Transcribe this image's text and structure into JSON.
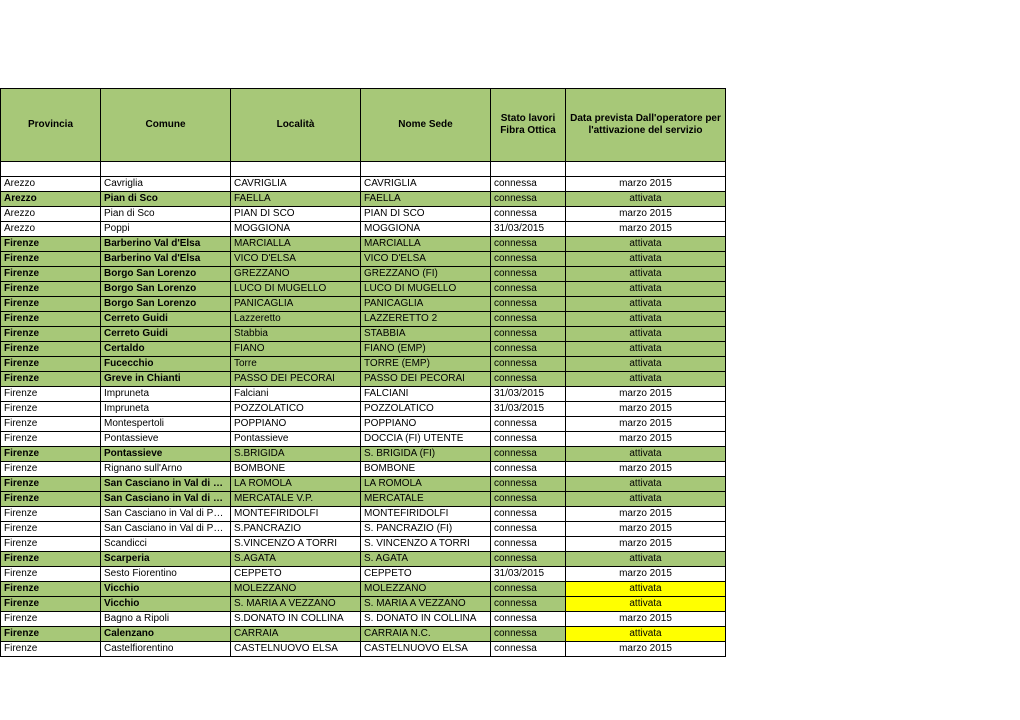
{
  "table": {
    "columns": [
      {
        "label": "Provincia",
        "class": "col0"
      },
      {
        "label": "Comune",
        "class": "col1"
      },
      {
        "label": "Località",
        "class": "col2"
      },
      {
        "label": "Nome Sede",
        "class": "col3"
      },
      {
        "label": "Stato lavori Fibra Ottica",
        "class": "col4"
      },
      {
        "label": "Data prevista Dall'operatore per l'attivazione del servizio",
        "class": "col5"
      }
    ],
    "rows": [
      {
        "style": "white",
        "cells": [
          "Arezzo",
          "Cavriglia",
          "CAVRIGLIA",
          "CAVRIGLIA",
          "connessa",
          "marzo 2015"
        ]
      },
      {
        "style": "green",
        "cells": [
          "Arezzo",
          "Pian di Sco",
          "FAELLA",
          "FAELLA",
          "connessa",
          "attivata"
        ]
      },
      {
        "style": "white",
        "cells": [
          "Arezzo",
          "Pian di Sco",
          "PIAN DI SCO",
          "PIAN DI SCO",
          "connessa",
          "marzo 2015"
        ]
      },
      {
        "style": "white",
        "cells": [
          "Arezzo",
          "Poppi",
          "MOGGIONA",
          "MOGGIONA",
          "31/03/2015",
          "marzo 2015"
        ]
      },
      {
        "style": "green",
        "cells": [
          "Firenze",
          "Barberino Val d'Elsa",
          "MARCIALLA",
          "MARCIALLA",
          "connessa",
          "attivata"
        ]
      },
      {
        "style": "green",
        "cells": [
          "Firenze",
          "Barberino Val d'Elsa",
          "VICO D'ELSA",
          "VICO D'ELSA",
          "connessa",
          "attivata"
        ]
      },
      {
        "style": "green",
        "cells": [
          "Firenze",
          "Borgo San Lorenzo",
          "GREZZANO",
          "GREZZANO (FI)",
          "connessa",
          "attivata"
        ]
      },
      {
        "style": "green",
        "cells": [
          "Firenze",
          "Borgo San Lorenzo",
          "LUCO DI MUGELLO",
          "LUCO DI MUGELLO",
          "connessa",
          "attivata"
        ]
      },
      {
        "style": "green",
        "cells": [
          "Firenze",
          "Borgo San Lorenzo",
          "PANICAGLIA",
          "PANICAGLIA",
          "connessa",
          "attivata"
        ]
      },
      {
        "style": "green",
        "cells": [
          "Firenze",
          "Cerreto Guidi",
          "Lazzeretto",
          "LAZZERETTO 2",
          "connessa",
          "attivata"
        ]
      },
      {
        "style": "green",
        "cells": [
          "Firenze",
          "Cerreto Guidi",
          "Stabbia",
          "STABBIA",
          "connessa",
          "attivata"
        ]
      },
      {
        "style": "green",
        "cells": [
          "Firenze",
          "Certaldo",
          "FIANO",
          "FIANO (EMP)",
          "connessa",
          "attivata"
        ]
      },
      {
        "style": "green",
        "cells": [
          "Firenze",
          "Fucecchio",
          "Torre",
          "TORRE (EMP)",
          "connessa",
          "attivata"
        ]
      },
      {
        "style": "green",
        "cells": [
          "Firenze",
          "Greve in Chianti",
          "PASSO DEI PECORAI",
          "PASSO DEI PECORAI",
          "connessa",
          "attivata"
        ]
      },
      {
        "style": "white",
        "cells": [
          "Firenze",
          "Impruneta",
          "Falciani",
          "FALCIANI",
          "31/03/2015",
          "marzo 2015"
        ]
      },
      {
        "style": "white",
        "cells": [
          "Firenze",
          "Impruneta",
          "POZZOLATICO",
          "POZZOLATICO",
          "31/03/2015",
          "marzo 2015"
        ]
      },
      {
        "style": "white",
        "cells": [
          "Firenze",
          "Montespertoli",
          "POPPIANO",
          "POPPIANO",
          "connessa",
          "marzo 2015"
        ]
      },
      {
        "style": "white",
        "cells": [
          "Firenze",
          "Pontassieve",
          "Pontassieve",
          "DOCCIA (FI) UTENTE",
          "connessa",
          "marzo 2015"
        ]
      },
      {
        "style": "green",
        "cells": [
          "Firenze",
          "Pontassieve",
          "S.BRIGIDA",
          "S. BRIGIDA (FI)",
          "connessa",
          "attivata"
        ]
      },
      {
        "style": "white",
        "cells": [
          "Firenze",
          "Rignano sull'Arno",
          "BOMBONE",
          "BOMBONE",
          "connessa",
          "marzo 2015"
        ]
      },
      {
        "style": "green",
        "cells": [
          "Firenze",
          "San Casciano in Val di Pesa",
          "LA ROMOLA",
          "LA ROMOLA",
          "connessa",
          "attivata"
        ]
      },
      {
        "style": "green",
        "cells": [
          "Firenze",
          "San Casciano in Val di Pesa",
          "MERCATALE V.P.",
          "MERCATALE",
          "connessa",
          "attivata"
        ]
      },
      {
        "style": "white",
        "cells": [
          "Firenze",
          "San Casciano in Val di Pesa",
          "MONTEFIRIDOLFI",
          "MONTEFIRIDOLFI",
          "connessa",
          "marzo 2015"
        ]
      },
      {
        "style": "white",
        "cells": [
          "Firenze",
          "San Casciano in Val di Pesa",
          "S.PANCRAZIO",
          "S. PANCRAZIO (FI)",
          "connessa",
          "marzo 2015"
        ]
      },
      {
        "style": "white",
        "cells": [
          "Firenze",
          "Scandicci",
          "S.VINCENZO A TORRI",
          "S. VINCENZO A TORRI",
          "connessa",
          "marzo 2015"
        ]
      },
      {
        "style": "green",
        "cells": [
          "Firenze",
          "Scarperia",
          "S.AGATA",
          "S. AGATA",
          "connessa",
          "attivata"
        ]
      },
      {
        "style": "white",
        "cells": [
          "Firenze",
          "Sesto Fiorentino",
          "CEPPETO",
          "CEPPETO",
          "31/03/2015",
          "marzo 2015"
        ]
      },
      {
        "style": "green",
        "yellowCol": 5,
        "cells": [
          "Firenze",
          "Vicchio",
          "MOLEZZANO",
          "MOLEZZANO",
          "connessa",
          "attivata"
        ]
      },
      {
        "style": "green",
        "yellowCol": 5,
        "cells": [
          "Firenze",
          "Vicchio",
          "S. MARIA A VEZZANO",
          "S. MARIA A VEZZANO",
          "connessa",
          "attivata"
        ]
      },
      {
        "style": "white",
        "cells": [
          "Firenze",
          "Bagno a Ripoli",
          "S.DONATO IN COLLINA",
          "S. DONATO IN COLLINA",
          "connessa",
          "marzo 2015"
        ]
      },
      {
        "style": "green",
        "yellowCol": 5,
        "cells": [
          "Firenze",
          "Calenzano",
          "CARRAIA",
          "CARRAIA N.C.",
          "connessa",
          "attivata"
        ]
      },
      {
        "style": "white",
        "cells": [
          "Firenze",
          "Castelfiorentino",
          "CASTELNUOVO ELSA",
          "CASTELNUOVO ELSA",
          "connessa",
          "marzo 2015"
        ]
      }
    ]
  }
}
